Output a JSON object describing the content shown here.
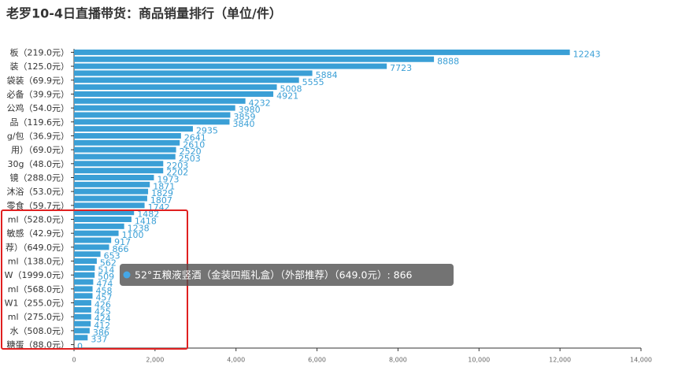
{
  "chart_data": {
    "type": "hbar",
    "title": "老罗10-4日直播带货：商品销量排行（单位/件）",
    "categories": [
      "板（219.0元）",
      null,
      "装（125.0元）",
      null,
      "袋装（69.9元）",
      null,
      "必备（39.9元）",
      null,
      "公鸡（54.0元）",
      null,
      "品（119.6元）",
      null,
      "g/包（36.9元）",
      null,
      "用）（69.0元）",
      null,
      "30g（48.0元）",
      null,
      "镜（288.0元）",
      null,
      "沐浴（53.0元）",
      null,
      "零食（59.7元）",
      null,
      "ml（528.0元）",
      null,
      "敏感（42.9元）",
      null,
      "荐）（649.0元）",
      null,
      "ml（138.0元）",
      null,
      "W（1999.0元）",
      null,
      "ml（568.0元）",
      null,
      "W1（255.0元）",
      null,
      "ml（275.0元）",
      null,
      "水（508.0元）",
      null,
      "糖蛋（88.0元）"
    ],
    "values": [
      12243,
      8888,
      7723,
      5884,
      5555,
      5008,
      4921,
      4232,
      3980,
      3859,
      3840,
      2935,
      2641,
      2610,
      2520,
      2503,
      2203,
      2202,
      1973,
      1871,
      1829,
      1807,
      1742,
      1482,
      1418,
      1238,
      1100,
      917,
      866,
      653,
      562,
      514,
      509,
      474,
      458,
      457,
      426,
      425,
      424,
      412,
      386,
      337,
      0
    ],
    "color": "#3a9fd6",
    "xlim": [
      0,
      14000
    ],
    "xticks": [
      0,
      {
        "value": 2000,
        "label": "2,000"
      },
      {
        "value": 4000,
        "label": "4,000"
      },
      {
        "value": 6000,
        "label": "6,000"
      },
      {
        "value": 8000,
        "label": "8,000"
      },
      {
        "value": 10000,
        "label": "10,000"
      },
      {
        "value": 12000,
        "label": "12,000"
      },
      {
        "value": 14000,
        "label": "14,000"
      }
    ],
    "tooltip": "52°五粮液竖酒（金装四瓶礼盒）（外部推荐）（649.0元）: 866"
  }
}
